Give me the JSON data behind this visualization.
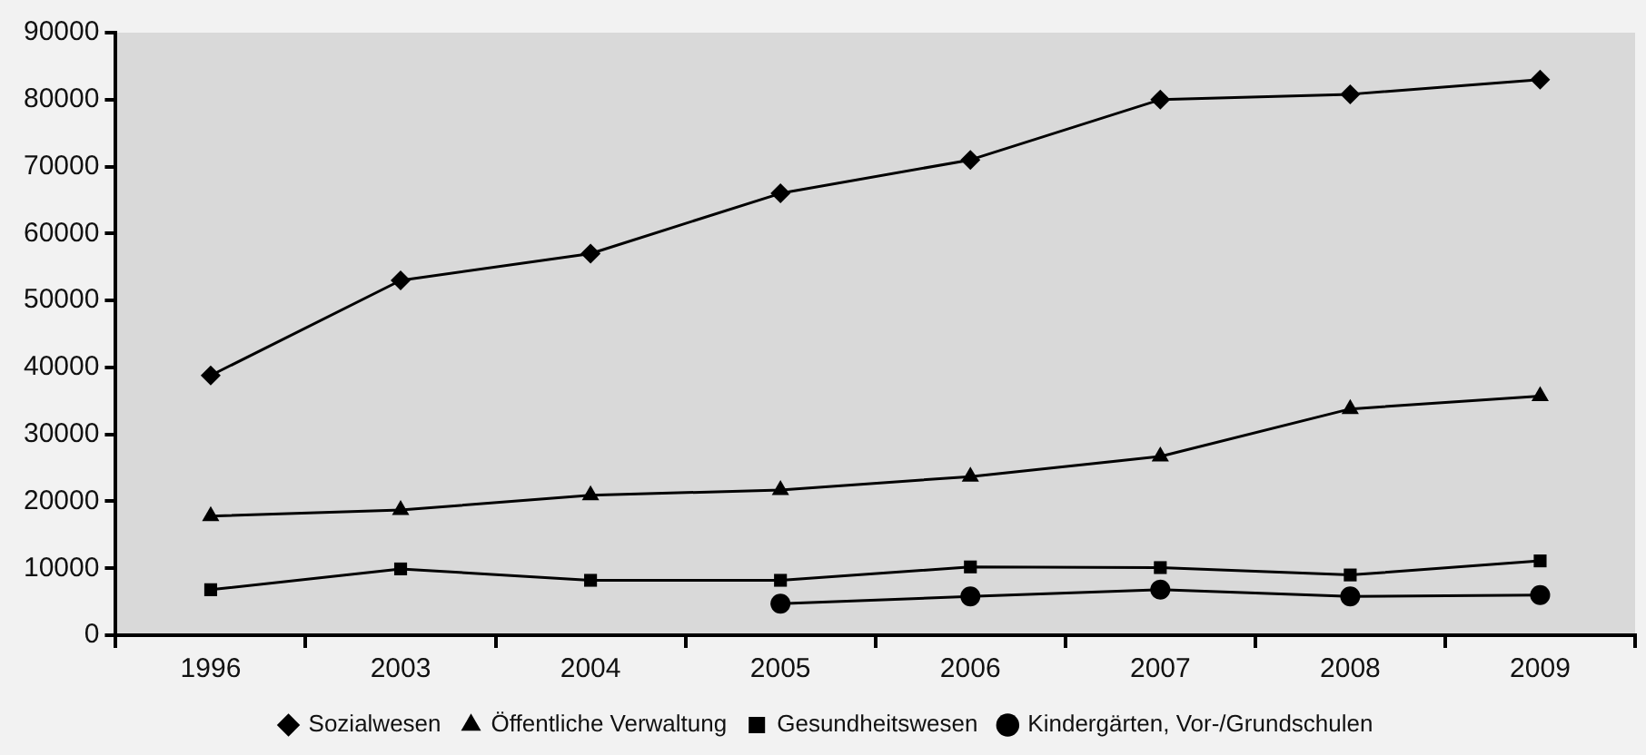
{
  "chart_data": {
    "type": "line",
    "categories": [
      "1996",
      "2003",
      "2004",
      "2005",
      "2006",
      "2007",
      "2008",
      "2009"
    ],
    "series": [
      {
        "name": "Sozialwesen",
        "color": "#000000",
        "marker": "diamond",
        "values": [
          38800,
          53000,
          57000,
          66000,
          71000,
          80000,
          80800,
          83000
        ]
      },
      {
        "name": "Öffentliche Verwaltung",
        "color": "#000000",
        "marker": "triangle",
        "values": [
          17800,
          18700,
          20900,
          21700,
          23700,
          26700,
          33800,
          35700
        ]
      },
      {
        "name": "Gesundheitswesen",
        "color": "#000000",
        "marker": "square",
        "values": [
          6800,
          9900,
          8200,
          8200,
          10200,
          10100,
          9000,
          11100
        ]
      },
      {
        "name": "Kindergärten, Vor-/Grundschulen",
        "color": "#000000",
        "marker": "circle",
        "values": [
          null,
          null,
          null,
          4700,
          5800,
          6800,
          5800,
          6000
        ]
      }
    ],
    "ylim": [
      0,
      90000
    ],
    "yticks": [
      0,
      10000,
      20000,
      30000,
      40000,
      50000,
      60000,
      70000,
      80000,
      90000
    ],
    "grid": false,
    "legend": "bottom",
    "line_style": "solid"
  }
}
